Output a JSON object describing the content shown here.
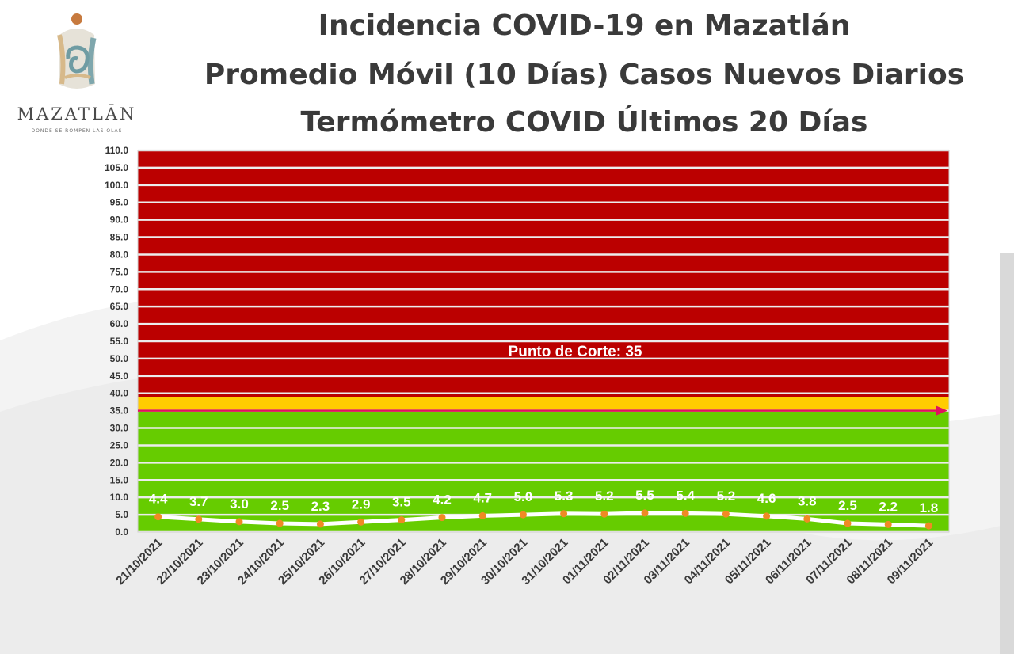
{
  "logo": {
    "name": "MAZATLĀN",
    "tagline": "DONDE SE ROMPEN LAS OLAS"
  },
  "titles": [
    "Incidencia COVID-19 en Mazatlán",
    "Promedio Móvil (10 Días) Casos Nuevos Diarios",
    "Termómetro COVID Últimos 20 Días"
  ],
  "chart_data": {
    "type": "line",
    "title": "Incidencia COVID-19 en Mazatlán / Promedio Móvil (10 Días) Casos Nuevos Diarios / Termómetro COVID Últimos 20 Días",
    "categories": [
      "21/10/2021",
      "22/10/2021",
      "23/10/2021",
      "24/10/2021",
      "25/10/2021",
      "26/10/2021",
      "27/10/2021",
      "28/10/2021",
      "29/10/2021",
      "30/10/2021",
      "31/10/2021",
      "01/11/2021",
      "02/11/2021",
      "03/11/2021",
      "04/11/2021",
      "05/11/2021",
      "06/11/2021",
      "07/11/2021",
      "08/11/2021",
      "09/11/2021"
    ],
    "values": [
      4.4,
      3.7,
      3.0,
      2.5,
      2.3,
      2.9,
      3.5,
      4.2,
      4.7,
      5.0,
      5.3,
      5.2,
      5.5,
      5.4,
      5.2,
      4.6,
      3.8,
      2.5,
      2.2,
      1.8
    ],
    "data_labels": [
      "4.4",
      "3.7",
      "3.0",
      "2.5",
      "2.3",
      "2.9",
      "3.5",
      "4.2",
      "4.7",
      "5.0",
      "5.3",
      "5.2",
      "5.5",
      "5.4",
      "5.2",
      "4.6",
      "3.8",
      "2.5",
      "2.2",
      "1.8"
    ],
    "ylim": [
      0,
      110
    ],
    "ytick_step": 5,
    "ytick_labels": [
      "0.0",
      "5.0",
      "10.0",
      "15.0",
      "20.0",
      "25.0",
      "30.0",
      "35.0",
      "40.0",
      "45.0",
      "50.0",
      "55.0",
      "60.0",
      "65.0",
      "70.0",
      "75.0",
      "80.0",
      "85.0",
      "90.0",
      "95.0",
      "100.0",
      "105.0",
      "110.0"
    ],
    "xlabel": "",
    "ylabel": "",
    "grid": true,
    "zones": [
      {
        "name": "verde",
        "from": 0,
        "to": 35,
        "color": "#66cc00"
      },
      {
        "name": "amarillo",
        "from": 35,
        "to": 39,
        "color": "#ffcc00"
      },
      {
        "name": "rojo",
        "from": 39,
        "to": 110,
        "color": "#bb0000"
      }
    ],
    "cutoff": {
      "value": 35,
      "label": "Punto de Corte: 35",
      "color": "#e0115f"
    },
    "line_color": "#ffffff",
    "marker_color": "#f08a24"
  }
}
